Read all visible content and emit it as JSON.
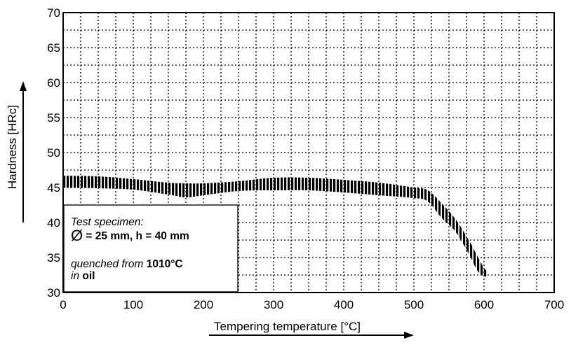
{
  "chart_data": {
    "type": "area",
    "xlabel": "Tempering temperature [°C]",
    "ylabel": "Hardness [HRc]",
    "xlim": [
      0,
      700
    ],
    "ylim": [
      30,
      70
    ],
    "xticks": [
      0,
      100,
      200,
      300,
      400,
      500,
      600,
      700
    ],
    "yticks": [
      30,
      35,
      40,
      45,
      50,
      55,
      60,
      65,
      70
    ],
    "x_minor_grid_step": 25,
    "y_minor_grid_step": 2.5,
    "grid": true,
    "band": {
      "x": [
        0,
        50,
        100,
        150,
        175,
        200,
        250,
        300,
        350,
        400,
        450,
        500,
        520,
        540,
        560,
        580,
        590,
        600,
        605
      ],
      "upper": [
        46.7,
        46.6,
        46.2,
        45.7,
        45.6,
        45.6,
        45.9,
        46.4,
        46.4,
        46.1,
        45.7,
        45.0,
        44.6,
        42.7,
        40.4,
        37.2,
        35.3,
        33.5,
        33.0
      ],
      "lower": [
        45.0,
        44.9,
        44.7,
        44.0,
        43.6,
        43.9,
        44.5,
        44.6,
        44.6,
        44.3,
        43.9,
        43.5,
        43.0,
        40.6,
        38.6,
        35.2,
        33.2,
        32.3,
        32.4
      ]
    },
    "annotation": {
      "line1": "Test specimen:",
      "line2_symbol": "Ø",
      "line2_text": " = 25 mm, h = 40 mm",
      "line3_prefix": "quenched from ",
      "line3_value": "1010°C",
      "line4_prefix": "in ",
      "line4_value": "oil"
    }
  }
}
